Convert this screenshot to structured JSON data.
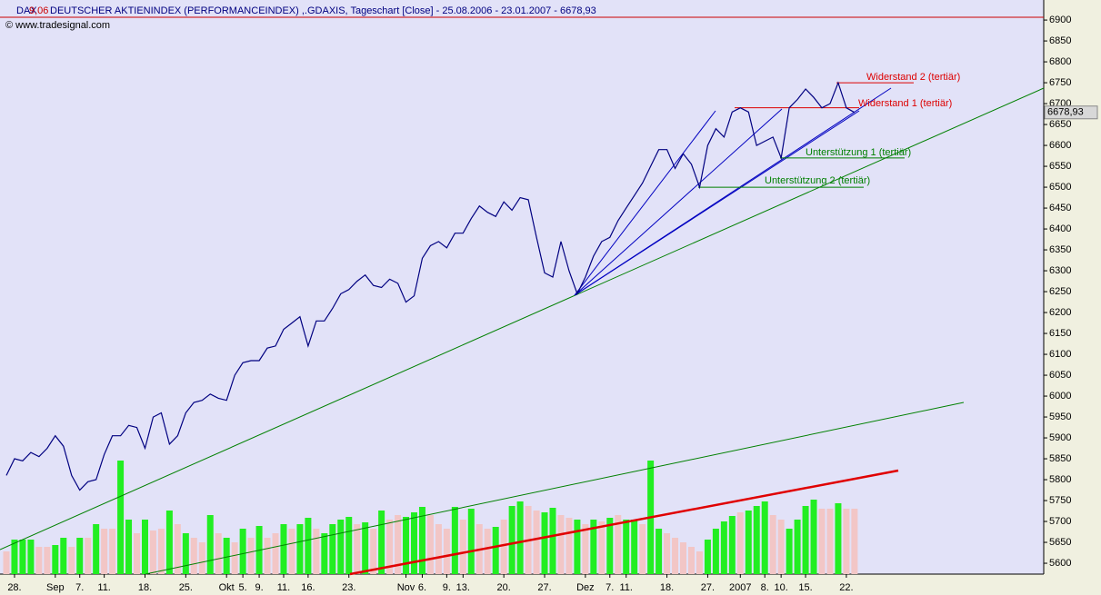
{
  "chart_data": {
    "type": "line",
    "title": "DEUTSCHER AKTIENINDEX (PERFORMANCEINDEX) ,.GDAXIS, Tageschart [Close] - 25.08.2006 - 23.01.2007 - 6678,93",
    "symbol": "DAX",
    "symbol_overlay": "9,06",
    "subtitle": "© www.tradesignal.com",
    "categories": [
      null,
      "28.",
      null,
      null,
      null,
      null,
      "Sep",
      null,
      null,
      "7.",
      null,
      null,
      "11.",
      null,
      null,
      null,
      null,
      "18.",
      null,
      null,
      null,
      null,
      "25.",
      null,
      null,
      null,
      null,
      "Okt",
      null,
      "5.",
      null,
      "9.",
      null,
      null,
      "11.",
      null,
      null,
      "16.",
      null,
      null,
      null,
      null,
      "23.",
      null,
      null,
      null,
      null,
      null,
      null,
      "Nov",
      null,
      "6.",
      null,
      null,
      "9.",
      null,
      "13.",
      null,
      null,
      null,
      null,
      "20.",
      null,
      null,
      null,
      null,
      "27.",
      null,
      null,
      null,
      null,
      "Dez",
      null,
      null,
      "7.",
      null,
      "11.",
      null,
      null,
      null,
      null,
      "18.",
      null,
      null,
      null,
      null,
      "27.",
      null,
      null,
      null,
      "2007",
      null,
      null,
      "8.",
      null,
      "10.",
      null,
      null,
      "15.",
      null,
      null,
      null,
      null,
      "22.",
      null
    ],
    "series": [
      {
        "name": "DAX",
        "color": "#000080",
        "values": [
          5810,
          5850,
          5845,
          5865,
          5855,
          5875,
          5905,
          5880,
          5810,
          5775,
          5795,
          5800,
          5860,
          5905,
          5905,
          5930,
          5925,
          5875,
          5950,
          5960,
          5885,
          5905,
          5960,
          5985,
          5990,
          6005,
          5995,
          5990,
          6050,
          6080,
          6085,
          6085,
          6115,
          6120,
          6160,
          6175,
          6190,
          6120,
          6180,
          6180,
          6210,
          6245,
          6255,
          6275,
          6290,
          6265,
          6260,
          6280,
          6270,
          6225,
          6240,
          6330,
          6360,
          6370,
          6355,
          6390,
          6390,
          6425,
          6455,
          6440,
          6430,
          6465,
          6445,
          6475,
          6470,
          6380,
          6295,
          6285,
          6370,
          6300,
          6245,
          6285,
          6335,
          6370,
          6380,
          6420,
          6450,
          6480,
          6510,
          6550,
          6590,
          6590,
          6545,
          6580,
          6555,
          6500,
          6600,
          6640,
          6620,
          6680,
          6690,
          6680,
          6600,
          6610,
          6620,
          6570,
          6690,
          6710,
          6735,
          6715,
          6690,
          6700,
          6750,
          6690,
          6678.93
        ]
      }
    ],
    "last_label": {
      "value": 6678.93,
      "label": "6678,93"
    },
    "volume": [
      {
        "color": "#22ee22",
        "values": [
          null,
          38,
          38,
          38,
          null,
          null,
          32,
          40,
          null,
          40,
          null,
          55,
          null,
          null,
          125,
          60,
          null,
          60,
          null,
          null,
          70,
          null,
          45,
          null,
          null,
          65,
          null,
          40,
          null,
          50,
          null,
          53,
          null,
          null,
          55,
          null,
          55,
          62,
          null,
          45,
          55,
          60,
          63,
          null,
          57,
          null,
          70,
          null,
          null,
          63,
          68,
          74,
          null,
          null,
          null,
          74,
          null,
          72,
          null,
          null,
          52,
          null,
          75,
          80,
          null,
          null,
          68,
          73,
          null,
          null,
          60,
          null,
          60,
          null,
          62,
          null,
          60,
          60,
          null,
          125,
          50,
          null,
          null,
          null,
          null,
          null,
          38,
          50,
          58,
          64,
          null,
          70,
          75,
          80,
          null,
          null,
          50,
          60,
          75,
          82,
          null,
          null,
          78,
          null,
          null
        ]
      },
      {
        "color": "#f2c6c6",
        "values": [
          25,
          null,
          null,
          null,
          30,
          30,
          null,
          null,
          30,
          null,
          40,
          null,
          50,
          50,
          null,
          null,
          45,
          null,
          48,
          50,
          null,
          55,
          null,
          40,
          35,
          null,
          45,
          null,
          35,
          null,
          40,
          null,
          40,
          45,
          null,
          50,
          null,
          null,
          50,
          null,
          null,
          null,
          null,
          55,
          null,
          50,
          null,
          60,
          65,
          null,
          null,
          null,
          65,
          55,
          50,
          null,
          60,
          null,
          55,
          50,
          null,
          60,
          null,
          null,
          75,
          70,
          null,
          null,
          65,
          62,
          null,
          55,
          null,
          58,
          null,
          65,
          null,
          null,
          55,
          null,
          null,
          45,
          40,
          35,
          30,
          25,
          null,
          null,
          null,
          null,
          68,
          null,
          null,
          null,
          65,
          60,
          null,
          null,
          null,
          null,
          72,
          72,
          null,
          72,
          72
        ]
      }
    ],
    "levels": [
      {
        "label": "Widerstand 2 (tertiär)",
        "value": 6750,
        "color": "#dd0000"
      },
      {
        "label": "Widerstand 1 (tertiär)",
        "value": 6690,
        "color": "#dd0000"
      },
      {
        "label": "Unterstützung 1 (tertiär)",
        "value": 6570,
        "color": "#008000"
      },
      {
        "label": "Unterstützung 2 (tertiär)",
        "value": 6500,
        "color": "#008000"
      }
    ],
    "ylim": [
      5574,
      6948
    ],
    "yticks": [
      5600,
      5650,
      5700,
      5750,
      5800,
      5850,
      5900,
      5950,
      6000,
      6050,
      6100,
      6150,
      6200,
      6250,
      6300,
      6350,
      6400,
      6450,
      6500,
      6550,
      6600,
      6650,
      6700,
      6750,
      6800,
      6850,
      6900
    ],
    "grid": false
  }
}
